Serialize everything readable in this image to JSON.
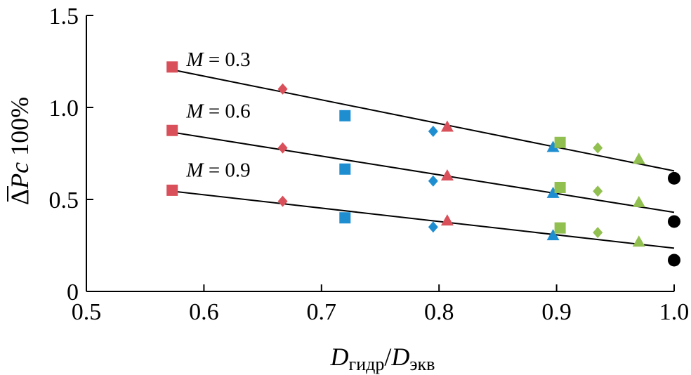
{
  "chart_data": {
    "type": "scatter",
    "title": "",
    "xlabel": {
      "main": "D",
      "sub1": "гидр",
      "slash": "/",
      "main2": "D",
      "sub2": "экв"
    },
    "ylabel": {
      "delta": "Δ",
      "p": "P",
      "c": "c",
      "rest": " 100%"
    },
    "xlim": [
      0.5,
      1.0
    ],
    "ylim": [
      0,
      1.5
    ],
    "x_ticks": [
      "0.5",
      "0.6",
      "0.7",
      "0.8",
      "0.9",
      "1.0"
    ],
    "y_ticks": [
      "0",
      "0.5",
      "1.0",
      "1.5"
    ],
    "grid": false,
    "legend": "none",
    "colors": {
      "red": "#d9505a",
      "blue": "#1f8ed0",
      "green": "#92c050",
      "black": "#000000"
    },
    "series_labels": [
      {
        "var": "M",
        "eq": " = 0.3"
      },
      {
        "var": "M",
        "eq": " = 0.6"
      },
      {
        "var": "M",
        "eq": " = 0.9"
      }
    ],
    "trend_lines": [
      {
        "x": [
          0.573,
          1.0
        ],
        "y": [
          1.205,
          0.655
        ]
      },
      {
        "x": [
          0.573,
          1.0
        ],
        "y": [
          0.865,
          0.43
        ]
      },
      {
        "x": [
          0.573,
          1.0
        ],
        "y": [
          0.545,
          0.235
        ]
      }
    ],
    "points": [
      {
        "x": 0.573,
        "y": 1.22,
        "shape": "square",
        "color": "red"
      },
      {
        "x": 0.667,
        "y": 1.1,
        "shape": "diamond",
        "color": "red"
      },
      {
        "x": 0.72,
        "y": 0.955,
        "shape": "square",
        "color": "blue"
      },
      {
        "x": 0.795,
        "y": 0.87,
        "shape": "diamond",
        "color": "blue"
      },
      {
        "x": 0.807,
        "y": 0.895,
        "shape": "triangle",
        "color": "red"
      },
      {
        "x": 0.897,
        "y": 0.785,
        "shape": "triangle",
        "color": "blue"
      },
      {
        "x": 0.903,
        "y": 0.81,
        "shape": "square",
        "color": "green"
      },
      {
        "x": 0.935,
        "y": 0.78,
        "shape": "diamond",
        "color": "green"
      },
      {
        "x": 0.97,
        "y": 0.72,
        "shape": "triangle",
        "color": "green"
      },
      {
        "x": 1.0,
        "y": 0.615,
        "shape": "circle",
        "color": "black"
      },
      {
        "x": 0.573,
        "y": 0.875,
        "shape": "square",
        "color": "red"
      },
      {
        "x": 0.667,
        "y": 0.78,
        "shape": "diamond",
        "color": "red"
      },
      {
        "x": 0.72,
        "y": 0.665,
        "shape": "square",
        "color": "blue"
      },
      {
        "x": 0.795,
        "y": 0.6,
        "shape": "diamond",
        "color": "blue"
      },
      {
        "x": 0.807,
        "y": 0.63,
        "shape": "triangle",
        "color": "red"
      },
      {
        "x": 0.897,
        "y": 0.535,
        "shape": "triangle",
        "color": "blue"
      },
      {
        "x": 0.903,
        "y": 0.565,
        "shape": "square",
        "color": "green"
      },
      {
        "x": 0.935,
        "y": 0.545,
        "shape": "diamond",
        "color": "green"
      },
      {
        "x": 0.97,
        "y": 0.485,
        "shape": "triangle",
        "color": "green"
      },
      {
        "x": 1.0,
        "y": 0.38,
        "shape": "circle",
        "color": "black"
      },
      {
        "x": 0.573,
        "y": 0.55,
        "shape": "square",
        "color": "red"
      },
      {
        "x": 0.667,
        "y": 0.49,
        "shape": "diamond",
        "color": "red"
      },
      {
        "x": 0.72,
        "y": 0.4,
        "shape": "square",
        "color": "blue"
      },
      {
        "x": 0.795,
        "y": 0.35,
        "shape": "diamond",
        "color": "blue"
      },
      {
        "x": 0.807,
        "y": 0.385,
        "shape": "triangle",
        "color": "red"
      },
      {
        "x": 0.897,
        "y": 0.305,
        "shape": "triangle",
        "color": "blue"
      },
      {
        "x": 0.903,
        "y": 0.345,
        "shape": "square",
        "color": "green"
      },
      {
        "x": 0.935,
        "y": 0.32,
        "shape": "diamond",
        "color": "green"
      },
      {
        "x": 0.97,
        "y": 0.27,
        "shape": "triangle",
        "color": "green"
      },
      {
        "x": 1.0,
        "y": 0.17,
        "shape": "circle",
        "color": "black"
      }
    ]
  }
}
